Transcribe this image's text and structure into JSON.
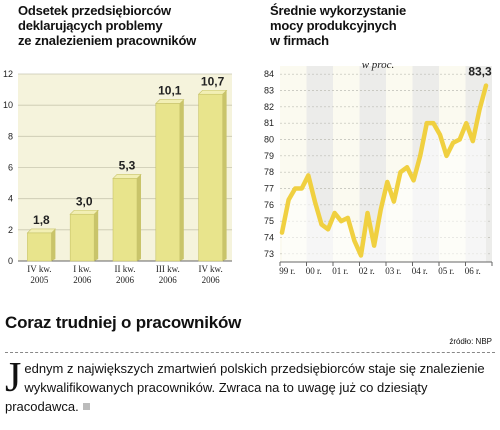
{
  "left_title": [
    "Odsetek przedsiębiorców",
    "deklarujących problemy",
    "ze znalezieniem pracowników"
  ],
  "right_title": [
    "Średnie wykorzystanie",
    "mocy produkcyjnych",
    "w firmach"
  ],
  "unit_label": "w proc.",
  "headline": "Coraz trudniej o pracowników",
  "source": "źródło: NBP",
  "paragraph": {
    "dropcap": "J",
    "text": "ednym z największych zmartwień polskich przedsiębiorców staje się znalezienie wykwalifikowanych pracowników. Zwraca na to uwagę  już co dziesiąty pracodawca."
  },
  "colors": {
    "bar": "#e8e48c",
    "line": "#f0d040",
    "panel": "#f5f3dc",
    "band_light": "#fbfaf0",
    "band_dark": "#ececea"
  },
  "chart_data": [
    {
      "type": "bar",
      "title": "Odsetek przedsiębiorców deklarujących problemy ze znalezieniem pracowników",
      "categories": [
        [
          "IV kw.",
          "2005"
        ],
        [
          "I kw.",
          "2006"
        ],
        [
          "II kw.",
          "2006"
        ],
        [
          "III kw.",
          "2006"
        ],
        [
          "IV kw.",
          "2006"
        ]
      ],
      "values": [
        1.8,
        3.0,
        5.3,
        10.1,
        10.7
      ],
      "value_labels": [
        "1,8",
        "3,0",
        "5,3",
        "10,1",
        "10,7"
      ],
      "ylim": [
        0,
        12
      ],
      "yticks": [
        0,
        2,
        4,
        6,
        8,
        10,
        12
      ],
      "grid": true
    },
    {
      "type": "line",
      "title": "Średnie wykorzystanie mocy produkcyjnych w firmach",
      "unit": "w proc.",
      "x_labels": [
        "99 r.",
        "00 r.",
        "01 r.",
        "02 r.",
        "03 r.",
        "04 r.",
        "05 r.",
        "06 r."
      ],
      "yticks": [
        73,
        74,
        75,
        76,
        77,
        78,
        79,
        80,
        81,
        82,
        83,
        84
      ],
      "ylim": [
        72.5,
        84.5
      ],
      "values": [
        74.3,
        76.3,
        77.0,
        77.0,
        77.8,
        76.2,
        74.8,
        74.5,
        75.5,
        75.0,
        75.2,
        73.8,
        72.9,
        75.5,
        73.5,
        75.7,
        77.4,
        76.2,
        78.0,
        78.3,
        77.5,
        79.0,
        81.0,
        81.0,
        80.3,
        79.0,
        79.8,
        80.0,
        81.0,
        79.9,
        81.8,
        83.3
      ],
      "end_label": "83,3",
      "grid": true
    }
  ]
}
